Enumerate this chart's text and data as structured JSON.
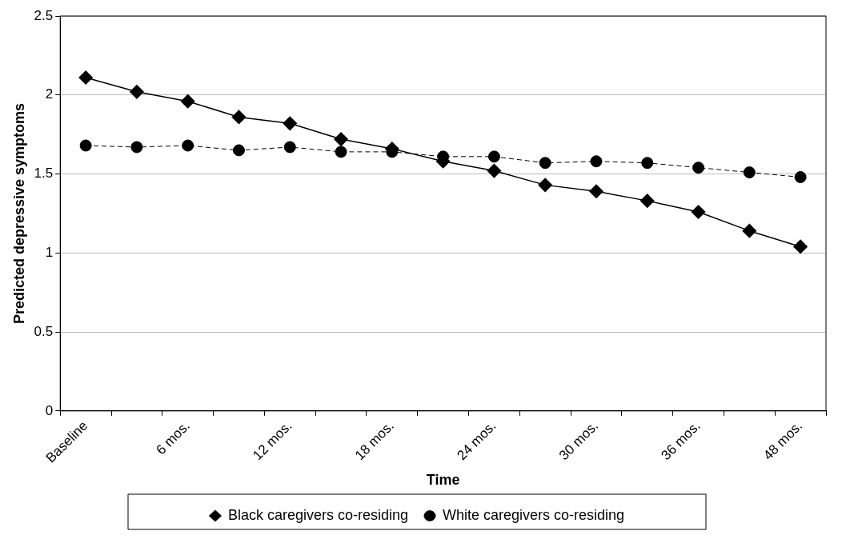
{
  "chart_data": {
    "type": "line",
    "xlabel": "Time",
    "ylabel": "Predicted depressive symptoms",
    "categories": [
      "Baseline",
      null,
      "6 mos.",
      null,
      "12 mos.",
      null,
      "18 mos.",
      null,
      "24 mos.",
      null,
      "30 mos.",
      null,
      "36 mos.",
      null,
      "48 mos."
    ],
    "series": [
      {
        "name": "Black caregivers co-residing",
        "color": "#000000",
        "marker": "diamond",
        "line_style": "solid",
        "values": [
          2.11,
          2.02,
          1.96,
          1.86,
          1.82,
          1.72,
          1.66,
          1.58,
          1.52,
          1.43,
          1.39,
          1.33,
          1.26,
          1.14,
          1.04
        ]
      },
      {
        "name": "White caregivers co-residing",
        "color": "#000000",
        "marker": "circle",
        "line_style": "dashed",
        "values": [
          1.68,
          1.67,
          1.68,
          1.65,
          1.67,
          1.64,
          1.64,
          1.61,
          1.61,
          1.57,
          1.58,
          1.57,
          1.54,
          1.51,
          1.48
        ]
      }
    ],
    "ylim": [
      0,
      2.5
    ],
    "yticks": [
      0,
      0.5,
      1,
      1.5,
      2,
      2.5
    ],
    "grid": "y",
    "legend": "bottom"
  }
}
